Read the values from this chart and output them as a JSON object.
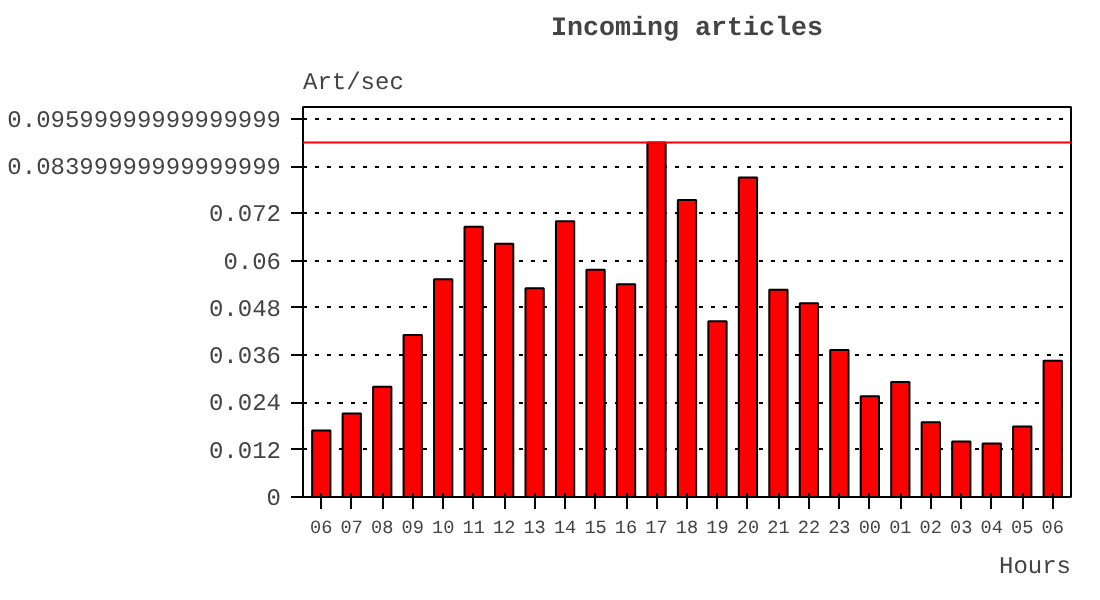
{
  "chart_data": {
    "type": "bar",
    "title": "Incoming articles",
    "ylabel": "Art/sec",
    "xlabel": "Hours",
    "categories": [
      "06",
      "07",
      "08",
      "09",
      "10",
      "11",
      "12",
      "13",
      "14",
      "15",
      "16",
      "17",
      "18",
      "19",
      "20",
      "21",
      "22",
      "23",
      "00",
      "01",
      "02",
      "03",
      "04",
      "05",
      "06"
    ],
    "values": [
      0.0169,
      0.0212,
      0.028,
      0.0411,
      0.0553,
      0.0686,
      0.0643,
      0.053,
      0.07,
      0.0577,
      0.054,
      0.09,
      0.0754,
      0.0446,
      0.0811,
      0.0526,
      0.0492,
      0.0373,
      0.0256,
      0.0292,
      0.019,
      0.0141,
      0.0136,
      0.0179,
      0.0346
    ],
    "color": "#ff0000",
    "ylim": [
      0,
      0.099
    ],
    "yticks": [
      0,
      0.012,
      0.024,
      0.036,
      0.048,
      0.06,
      0.072,
      {
        "value": 0.084,
        "label": "0.08399999999999999"
      },
      {
        "value": 0.096,
        "label": "0.09599999999999999"
      }
    ],
    "grid": "y",
    "line_style": "dotted",
    "ref_lines": [
      {
        "axis": "y",
        "value": 0.09,
        "color": "#ff0000"
      }
    ]
  }
}
